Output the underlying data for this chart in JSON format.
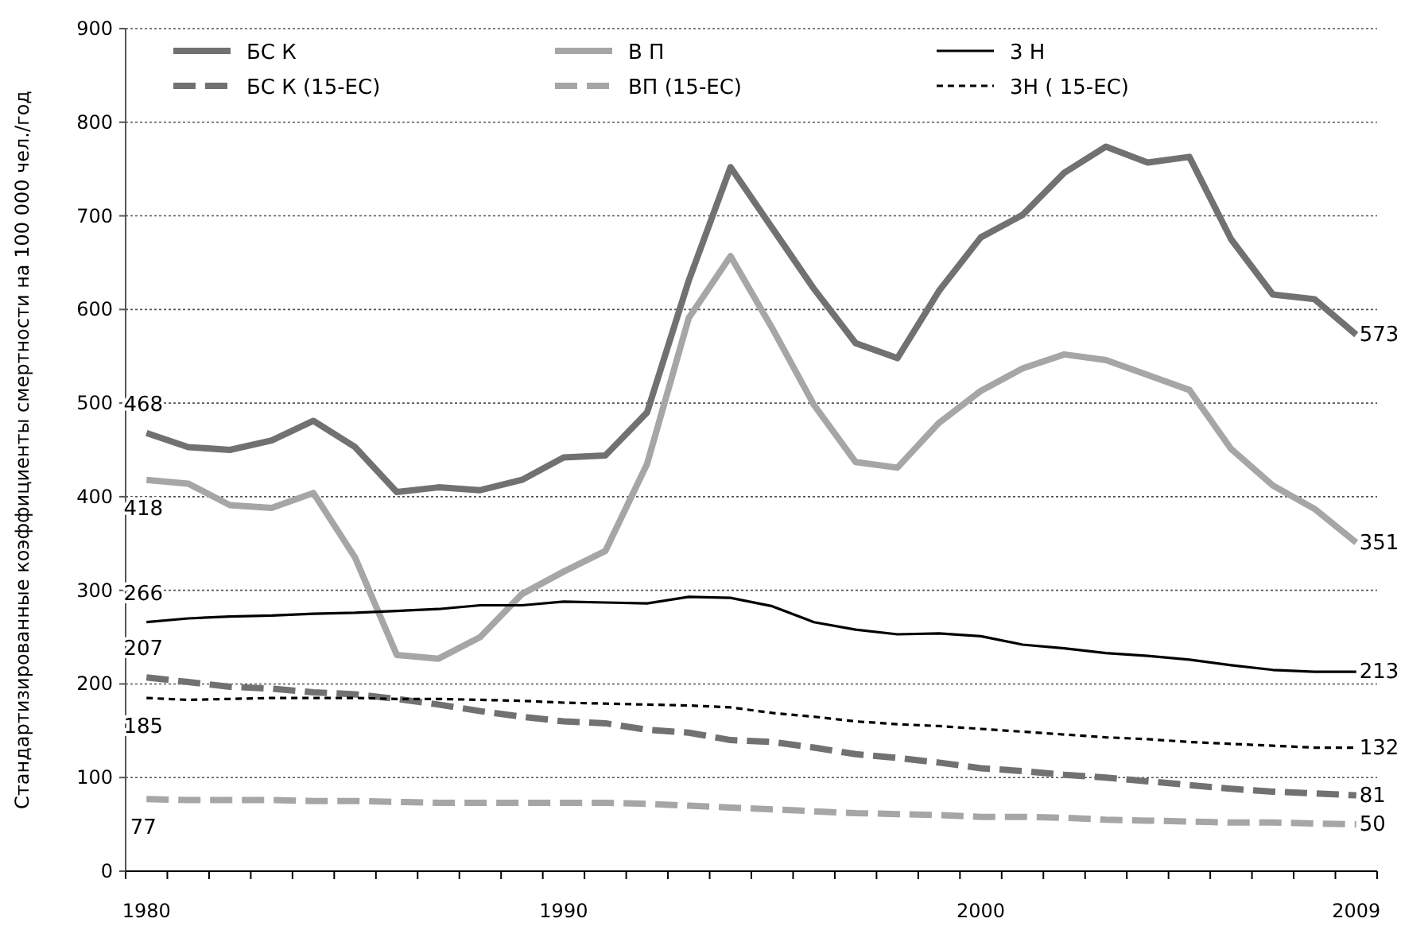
{
  "chart_data": {
    "type": "line",
    "ylabel": "Стандартизированные коэффициенты смертности на 100 000 чел./год",
    "categories": [
      "1980",
      null,
      null,
      null,
      null,
      null,
      null,
      null,
      null,
      null,
      "1990",
      null,
      null,
      null,
      null,
      null,
      null,
      null,
      null,
      null,
      "2000",
      null,
      null,
      null,
      null,
      null,
      null,
      null,
      null,
      "2009"
    ],
    "ylim": [
      0,
      900
    ],
    "yticks": [
      0,
      100,
      200,
      300,
      400,
      500,
      600,
      700,
      800,
      900
    ],
    "grid": "y",
    "legend": "top",
    "marker": "none",
    "series": [
      {
        "name": "БС К",
        "color": "#717171",
        "line_style": "solid",
        "values": [
          468,
          453,
          450,
          460,
          481,
          453,
          405,
          410,
          407,
          418,
          442,
          444,
          490,
          631,
          752,
          687,
          622,
          564,
          548,
          620,
          677,
          701,
          746,
          774,
          757,
          763,
          675,
          616,
          611,
          573
        ],
        "value_labels": [
          "468",
          null,
          null,
          null,
          null,
          null,
          null,
          null,
          null,
          null,
          null,
          null,
          null,
          null,
          null,
          null,
          null,
          null,
          null,
          null,
          null,
          null,
          null,
          null,
          null,
          null,
          null,
          null,
          null,
          "573"
        ]
      },
      {
        "name": "В П",
        "color": "#a6a6a6",
        "line_style": "solid",
        "values": [
          418,
          414,
          391,
          388,
          404,
          335,
          231,
          227,
          250,
          296,
          320,
          342,
          435,
          591,
          657,
          580,
          498,
          437,
          431,
          479,
          513,
          537,
          552,
          546,
          530,
          514,
          451,
          412,
          387,
          351
        ],
        "value_labels": [
          "418",
          null,
          null,
          null,
          null,
          null,
          null,
          null,
          null,
          null,
          null,
          null,
          null,
          null,
          null,
          null,
          null,
          null,
          null,
          null,
          null,
          null,
          null,
          null,
          null,
          null,
          null,
          null,
          null,
          "351"
        ]
      },
      {
        "name": "3 Н",
        "color": "#000000",
        "line_style": "solid",
        "values": [
          266,
          270,
          272,
          273,
          275,
          276,
          278,
          280,
          284,
          284,
          288,
          287,
          286,
          293,
          292,
          283,
          266,
          258,
          253,
          254,
          251,
          242,
          238,
          233,
          230,
          226,
          220,
          215,
          213,
          213
        ],
        "value_labels": [
          "266",
          null,
          null,
          null,
          null,
          null,
          null,
          null,
          null,
          null,
          null,
          null,
          null,
          null,
          null,
          null,
          null,
          null,
          null,
          null,
          null,
          null,
          null,
          null,
          null,
          null,
          null,
          null,
          null,
          "213"
        ]
      },
      {
        "name": "БС К  (15-ЕС)",
        "color": "#717171",
        "line_style": "dashed",
        "values": [
          207,
          202,
          197,
          195,
          191,
          189,
          184,
          178,
          171,
          165,
          160,
          158,
          151,
          148,
          140,
          138,
          132,
          125,
          121,
          116,
          110,
          107,
          103,
          100,
          96,
          92,
          88,
          85,
          83,
          81
        ],
        "value_labels": [
          "207",
          null,
          null,
          null,
          null,
          null,
          null,
          null,
          null,
          null,
          null,
          null,
          null,
          null,
          null,
          null,
          null,
          null,
          null,
          null,
          null,
          null,
          null,
          null,
          null,
          null,
          null,
          null,
          null,
          "81"
        ]
      },
      {
        "name": "ВП  (15-ЕС)",
        "color": "#a6a6a6",
        "line_style": "dashed",
        "values": [
          77,
          76,
          76,
          76,
          75,
          75,
          74,
          73,
          73,
          73,
          73,
          73,
          72,
          70,
          68,
          66,
          64,
          62,
          61,
          60,
          58,
          58,
          57,
          55,
          54,
          53,
          52,
          52,
          51,
          50
        ],
        "value_labels": [
          "77",
          null,
          null,
          null,
          null,
          null,
          null,
          null,
          null,
          null,
          null,
          null,
          null,
          null,
          null,
          null,
          null,
          null,
          null,
          null,
          null,
          null,
          null,
          null,
          null,
          null,
          null,
          null,
          null,
          "50"
        ]
      },
      {
        "name": "3Н ( 15-ЕС)",
        "color": "#000000",
        "line_style": "dotted",
        "values": [
          185,
          183,
          184,
          185,
          185,
          185,
          184,
          184,
          183,
          182,
          180,
          179,
          178,
          177,
          175,
          169,
          165,
          160,
          157,
          155,
          152,
          149,
          146,
          143,
          141,
          138,
          136,
          134,
          132,
          132
        ],
        "value_labels": [
          "185",
          null,
          null,
          null,
          null,
          null,
          null,
          null,
          null,
          null,
          null,
          null,
          null,
          null,
          null,
          null,
          null,
          null,
          null,
          null,
          null,
          null,
          null,
          null,
          null,
          null,
          null,
          null,
          null,
          "132"
        ]
      }
    ]
  }
}
